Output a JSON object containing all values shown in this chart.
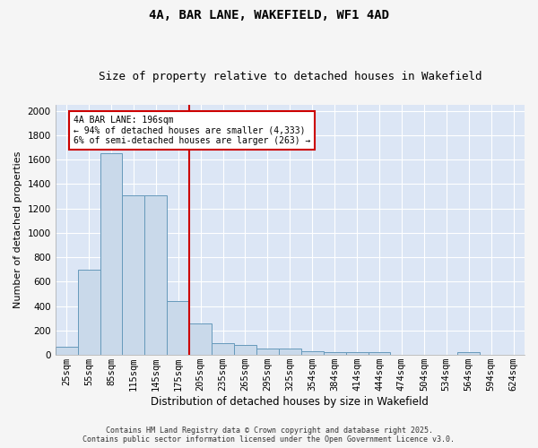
{
  "title": "4A, BAR LANE, WAKEFIELD, WF1 4AD",
  "subtitle": "Size of property relative to detached houses in Wakefield",
  "xlabel": "Distribution of detached houses by size in Wakefield",
  "ylabel": "Number of detached properties",
  "categories": [
    "25sqm",
    "55sqm",
    "85sqm",
    "115sqm",
    "145sqm",
    "175sqm",
    "205sqm",
    "235sqm",
    "265sqm",
    "295sqm",
    "325sqm",
    "354sqm",
    "384sqm",
    "414sqm",
    "444sqm",
    "474sqm",
    "504sqm",
    "534sqm",
    "564sqm",
    "594sqm",
    "624sqm"
  ],
  "values": [
    65,
    700,
    1650,
    1310,
    1310,
    445,
    255,
    95,
    85,
    50,
    50,
    30,
    25,
    20,
    20,
    0,
    0,
    0,
    20,
    0,
    0
  ],
  "bar_color": "#c9d9ea",
  "bar_edge_color": "#6699bb",
  "vline_color": "#cc0000",
  "vline_x_index": 5.5,
  "annotation_text": "4A BAR LANE: 196sqm\n← 94% of detached houses are smaller (4,333)\n6% of semi-detached houses are larger (263) →",
  "annotation_box_facecolor": "#ffffff",
  "annotation_box_edgecolor": "#cc0000",
  "ylim": [
    0,
    2050
  ],
  "yticks": [
    0,
    200,
    400,
    600,
    800,
    1000,
    1200,
    1400,
    1600,
    1800,
    2000
  ],
  "fig_background": "#f5f5f5",
  "ax_background": "#dce6f5",
  "grid_color": "#ffffff",
  "footer_line1": "Contains HM Land Registry data © Crown copyright and database right 2025.",
  "footer_line2": "Contains public sector information licensed under the Open Government Licence v3.0.",
  "title_fontsize": 10,
  "subtitle_fontsize": 9,
  "ylabel_fontsize": 8,
  "xlabel_fontsize": 8.5,
  "tick_fontsize": 7.5,
  "annotation_fontsize": 7,
  "footer_fontsize": 6
}
